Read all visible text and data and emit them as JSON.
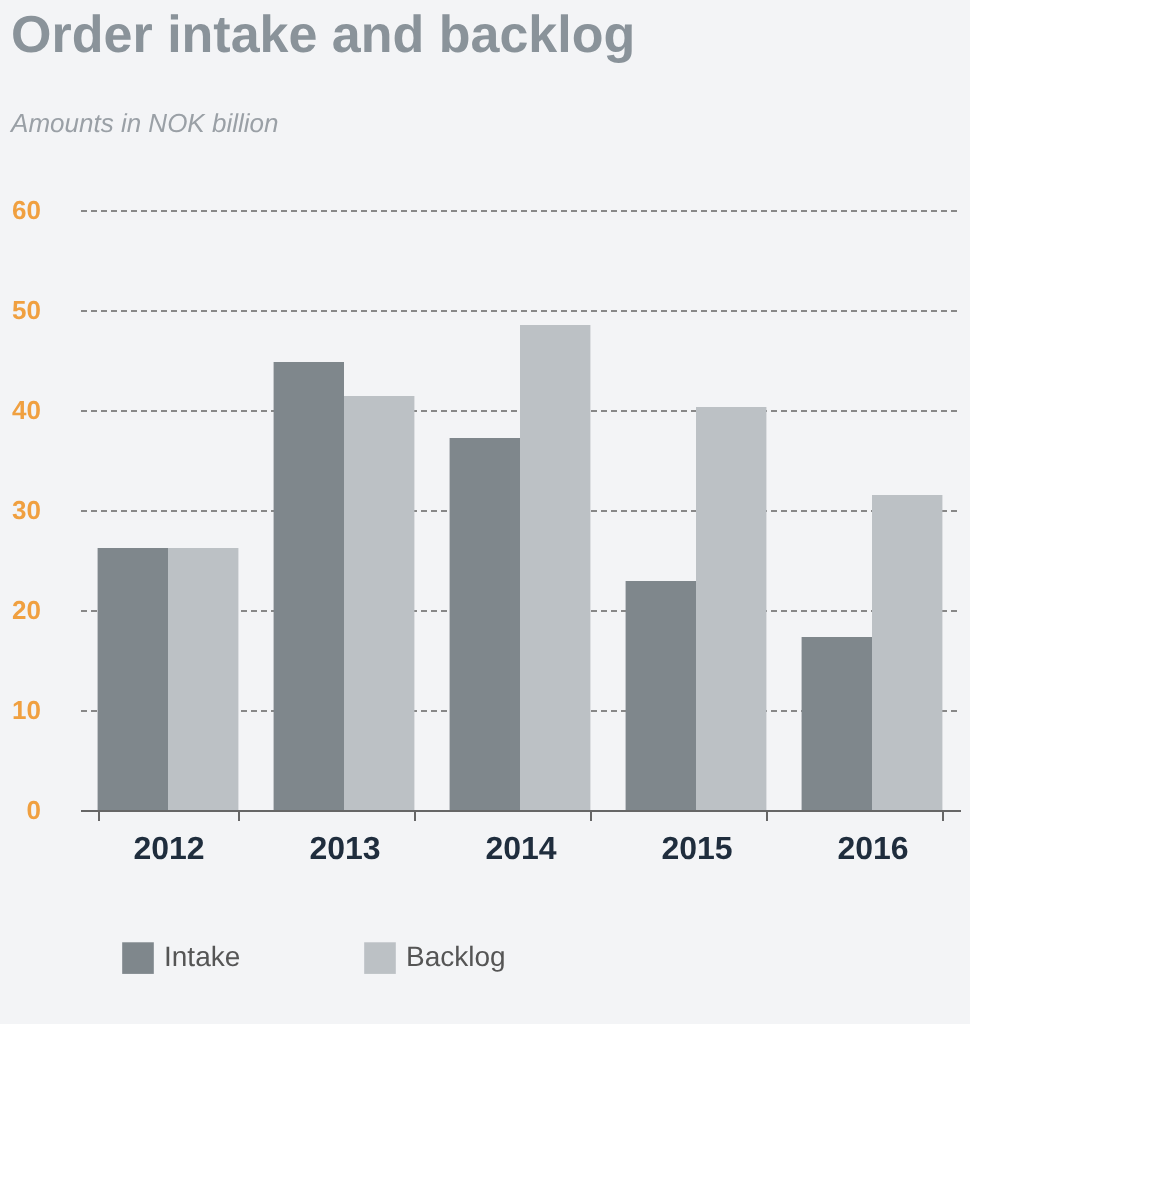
{
  "chart_data": {
    "type": "bar",
    "title": "Order intake and backlog",
    "subtitle": "Amounts in NOK billion",
    "categories": [
      "2012",
      "2013",
      "2014",
      "2015",
      "2016"
    ],
    "series": [
      {
        "name": "Intake",
        "color": "#7f878c",
        "values": [
          26.2,
          44.8,
          37.2,
          22.9,
          17.3
        ]
      },
      {
        "name": "Backlog",
        "color": "#bcc1c5",
        "values": [
          26.2,
          41.4,
          48.5,
          40.3,
          31.5
        ]
      }
    ],
    "ylim": [
      0,
      60
    ],
    "yticks": [
      0,
      10,
      20,
      30,
      40,
      50,
      60
    ],
    "grid": "y",
    "legend": "bottom"
  }
}
